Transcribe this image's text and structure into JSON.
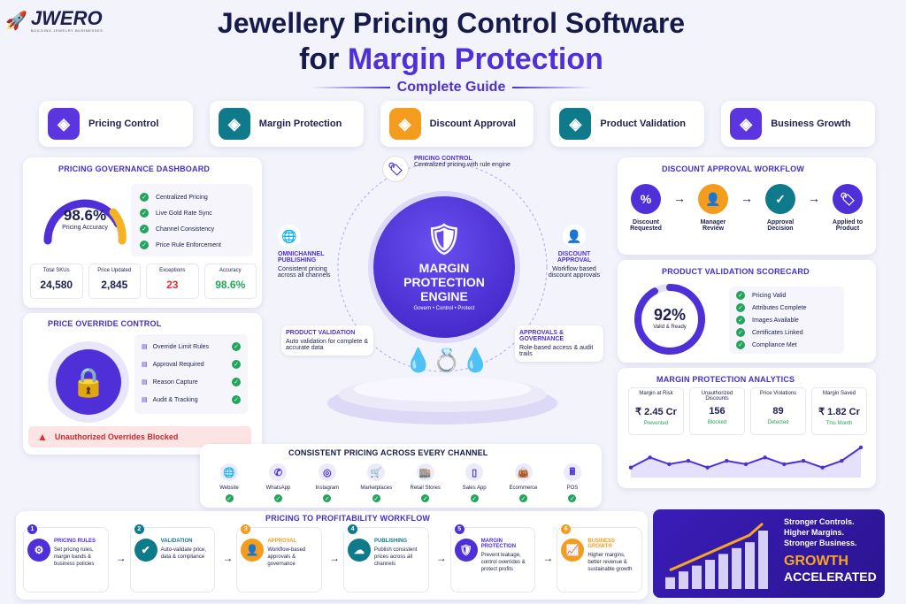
{
  "brand": {
    "name": "JWERO",
    "tagline": "BUILDING JEWELRY BUSINESSES"
  },
  "header": {
    "title_line1": "Jewellery Pricing Control Software",
    "title_line2_prefix": "for",
    "title_line2_highlight": "Margin Protection",
    "subtitle": "Complete Guide"
  },
  "pills": [
    {
      "label": "Pricing Control",
      "icon": "shield-icon",
      "color": "#5b35e0"
    },
    {
      "label": "Margin Protection",
      "icon": "shield-check-icon",
      "color": "#0e7a8a"
    },
    {
      "label": "Discount Approval",
      "icon": "approval-icon",
      "color": "#f39c1e"
    },
    {
      "label": "Product Validation",
      "icon": "clipboard-check-icon",
      "color": "#0e7a8a"
    },
    {
      "label": "Business Growth",
      "icon": "chart-icon",
      "color": "#5b35e0"
    }
  ],
  "dashboard": {
    "title": "PRICING GOVERNANCE DASHBOARD",
    "gauge_value": "98.6%",
    "gauge_label": "Pricing Accuracy",
    "gauge_fraction": 0.986,
    "checks": [
      "Centralized Pricing",
      "Live Gold Rate Sync",
      "Channel Consistency",
      "Price Rule Enforcement"
    ],
    "stats": [
      {
        "label": "Total SKUs",
        "value": "24,580",
        "color": "#1d1f4f"
      },
      {
        "label": "Price Updated",
        "value": "2,845",
        "color": "#1d1f4f"
      },
      {
        "label": "Exceptions",
        "value": "23",
        "color": "#e03131"
      },
      {
        "label": "Accuracy",
        "value": "98.6%",
        "color": "#22a55a"
      }
    ]
  },
  "override": {
    "title": "PRICE OVERRIDE CONTROL",
    "items": [
      "Override Limit Rules",
      "Approval Required",
      "Reason Capture",
      "Audit & Tracking"
    ],
    "alert": "Unauthorized Overrides Blocked"
  },
  "engine": {
    "line1": "MARGIN",
    "line2": "PROTECTION",
    "line3": "ENGINE",
    "tagline": "Govern • Control • Protect",
    "nodes": [
      {
        "title": "PRICING CONTROL",
        "desc": "Centralized pricing with rule engine"
      },
      {
        "title": "OMNICHANNEL PUBLISHING",
        "desc": "Consistent pricing across all channels"
      },
      {
        "title": "DISCOUNT APPROVAL",
        "desc": "Workflow based discount approvals"
      },
      {
        "title": "PRODUCT VALIDATION",
        "desc": "Auto validation for complete & accurate data"
      },
      {
        "title": "APPROVALS & GOVERNANCE",
        "desc": "Role-based access & audit trails"
      }
    ]
  },
  "discount": {
    "title": "DISCOUNT APPROVAL WORKFLOW",
    "steps": [
      {
        "label": "Discount Requested",
        "color": "#4f2fd8",
        "glyph": "%"
      },
      {
        "label": "Manager Review",
        "color": "#f39c1e",
        "glyph": "👤"
      },
      {
        "label": "Approval Decision",
        "color": "#0e7a8a",
        "glyph": "✓"
      },
      {
        "label": "Applied to Product",
        "color": "#4f2fd8",
        "glyph": "🏷"
      }
    ]
  },
  "validation": {
    "title": "PRODUCT VALIDATION SCORECARD",
    "score": "92%",
    "score_label": "Valid & Ready",
    "score_fraction": 0.92,
    "checks": [
      "Pricing Valid",
      "Attributes Complete",
      "Images Available",
      "Certificates Linked",
      "Compliance Met"
    ]
  },
  "analytics": {
    "title": "MARGIN PROTECTION ANALYTICS",
    "cards": [
      {
        "label": "Margin at Risk",
        "value": "₹ 2.45 Cr",
        "status": "Prevented"
      },
      {
        "label": "Unauthorized Discounts",
        "value": "156",
        "status": "Blocked"
      },
      {
        "label": "Price Violations",
        "value": "89",
        "status": "Detected"
      },
      {
        "label": "Margin Saved",
        "value": "₹ 1.82 Cr",
        "status": "This Month"
      }
    ],
    "trend": [
      3,
      6,
      4,
      5,
      3,
      5,
      4,
      6,
      4,
      5,
      3,
      5,
      9
    ]
  },
  "channels": {
    "title": "CONSISTENT PRICING ACROSS EVERY CHANNEL",
    "items": [
      {
        "label": "Website",
        "glyph": "🌐"
      },
      {
        "label": "WhatsApp",
        "glyph": "✆"
      },
      {
        "label": "Instagram",
        "glyph": "◎"
      },
      {
        "label": "Marketplaces",
        "glyph": "🛒"
      },
      {
        "label": "Retail Stores",
        "glyph": "🏬"
      },
      {
        "label": "Sales App",
        "glyph": "▯"
      },
      {
        "label": "Ecommerce",
        "glyph": "👜"
      },
      {
        "label": "POS",
        "glyph": "🖩"
      }
    ]
  },
  "workflow": {
    "title": "PRICING TO PROFITABILITY WORKFLOW",
    "steps": [
      {
        "num": "1",
        "title": "PRICING RULES",
        "desc": "Set pricing rules, margin bands & business policies",
        "color": "#4f2fd8",
        "glyph": "⚙"
      },
      {
        "num": "2",
        "title": "VALIDATION",
        "desc": "Auto-validate price, data & compliance",
        "color": "#0e7a8a",
        "glyph": "✔"
      },
      {
        "num": "3",
        "title": "APPROVAL",
        "desc": "Workflow-based approvals & governance",
        "color": "#f39c1e",
        "glyph": "👤"
      },
      {
        "num": "4",
        "title": "PUBLISHING",
        "desc": "Publish consistent prices across all channels",
        "color": "#0e7a8a",
        "glyph": "☁"
      },
      {
        "num": "5",
        "title": "MARGIN PROTECTION",
        "desc": "Prevent leakage, control overrides & protect profits",
        "color": "#4f2fd8",
        "glyph": "🛡"
      },
      {
        "num": "6",
        "title": "BUSINESS GROWTH",
        "desc": "Higher margins, better revenue & sustainable growth",
        "color": "#f39c1e",
        "glyph": "📈"
      }
    ]
  },
  "growth": {
    "lines": [
      "Stronger Controls.",
      "Higher Margins.",
      "Stronger Business."
    ],
    "highlight": "GROWTH",
    "footer": "ACCELERATED",
    "bars": [
      2,
      3,
      4,
      5,
      6,
      7,
      8,
      10
    ]
  }
}
